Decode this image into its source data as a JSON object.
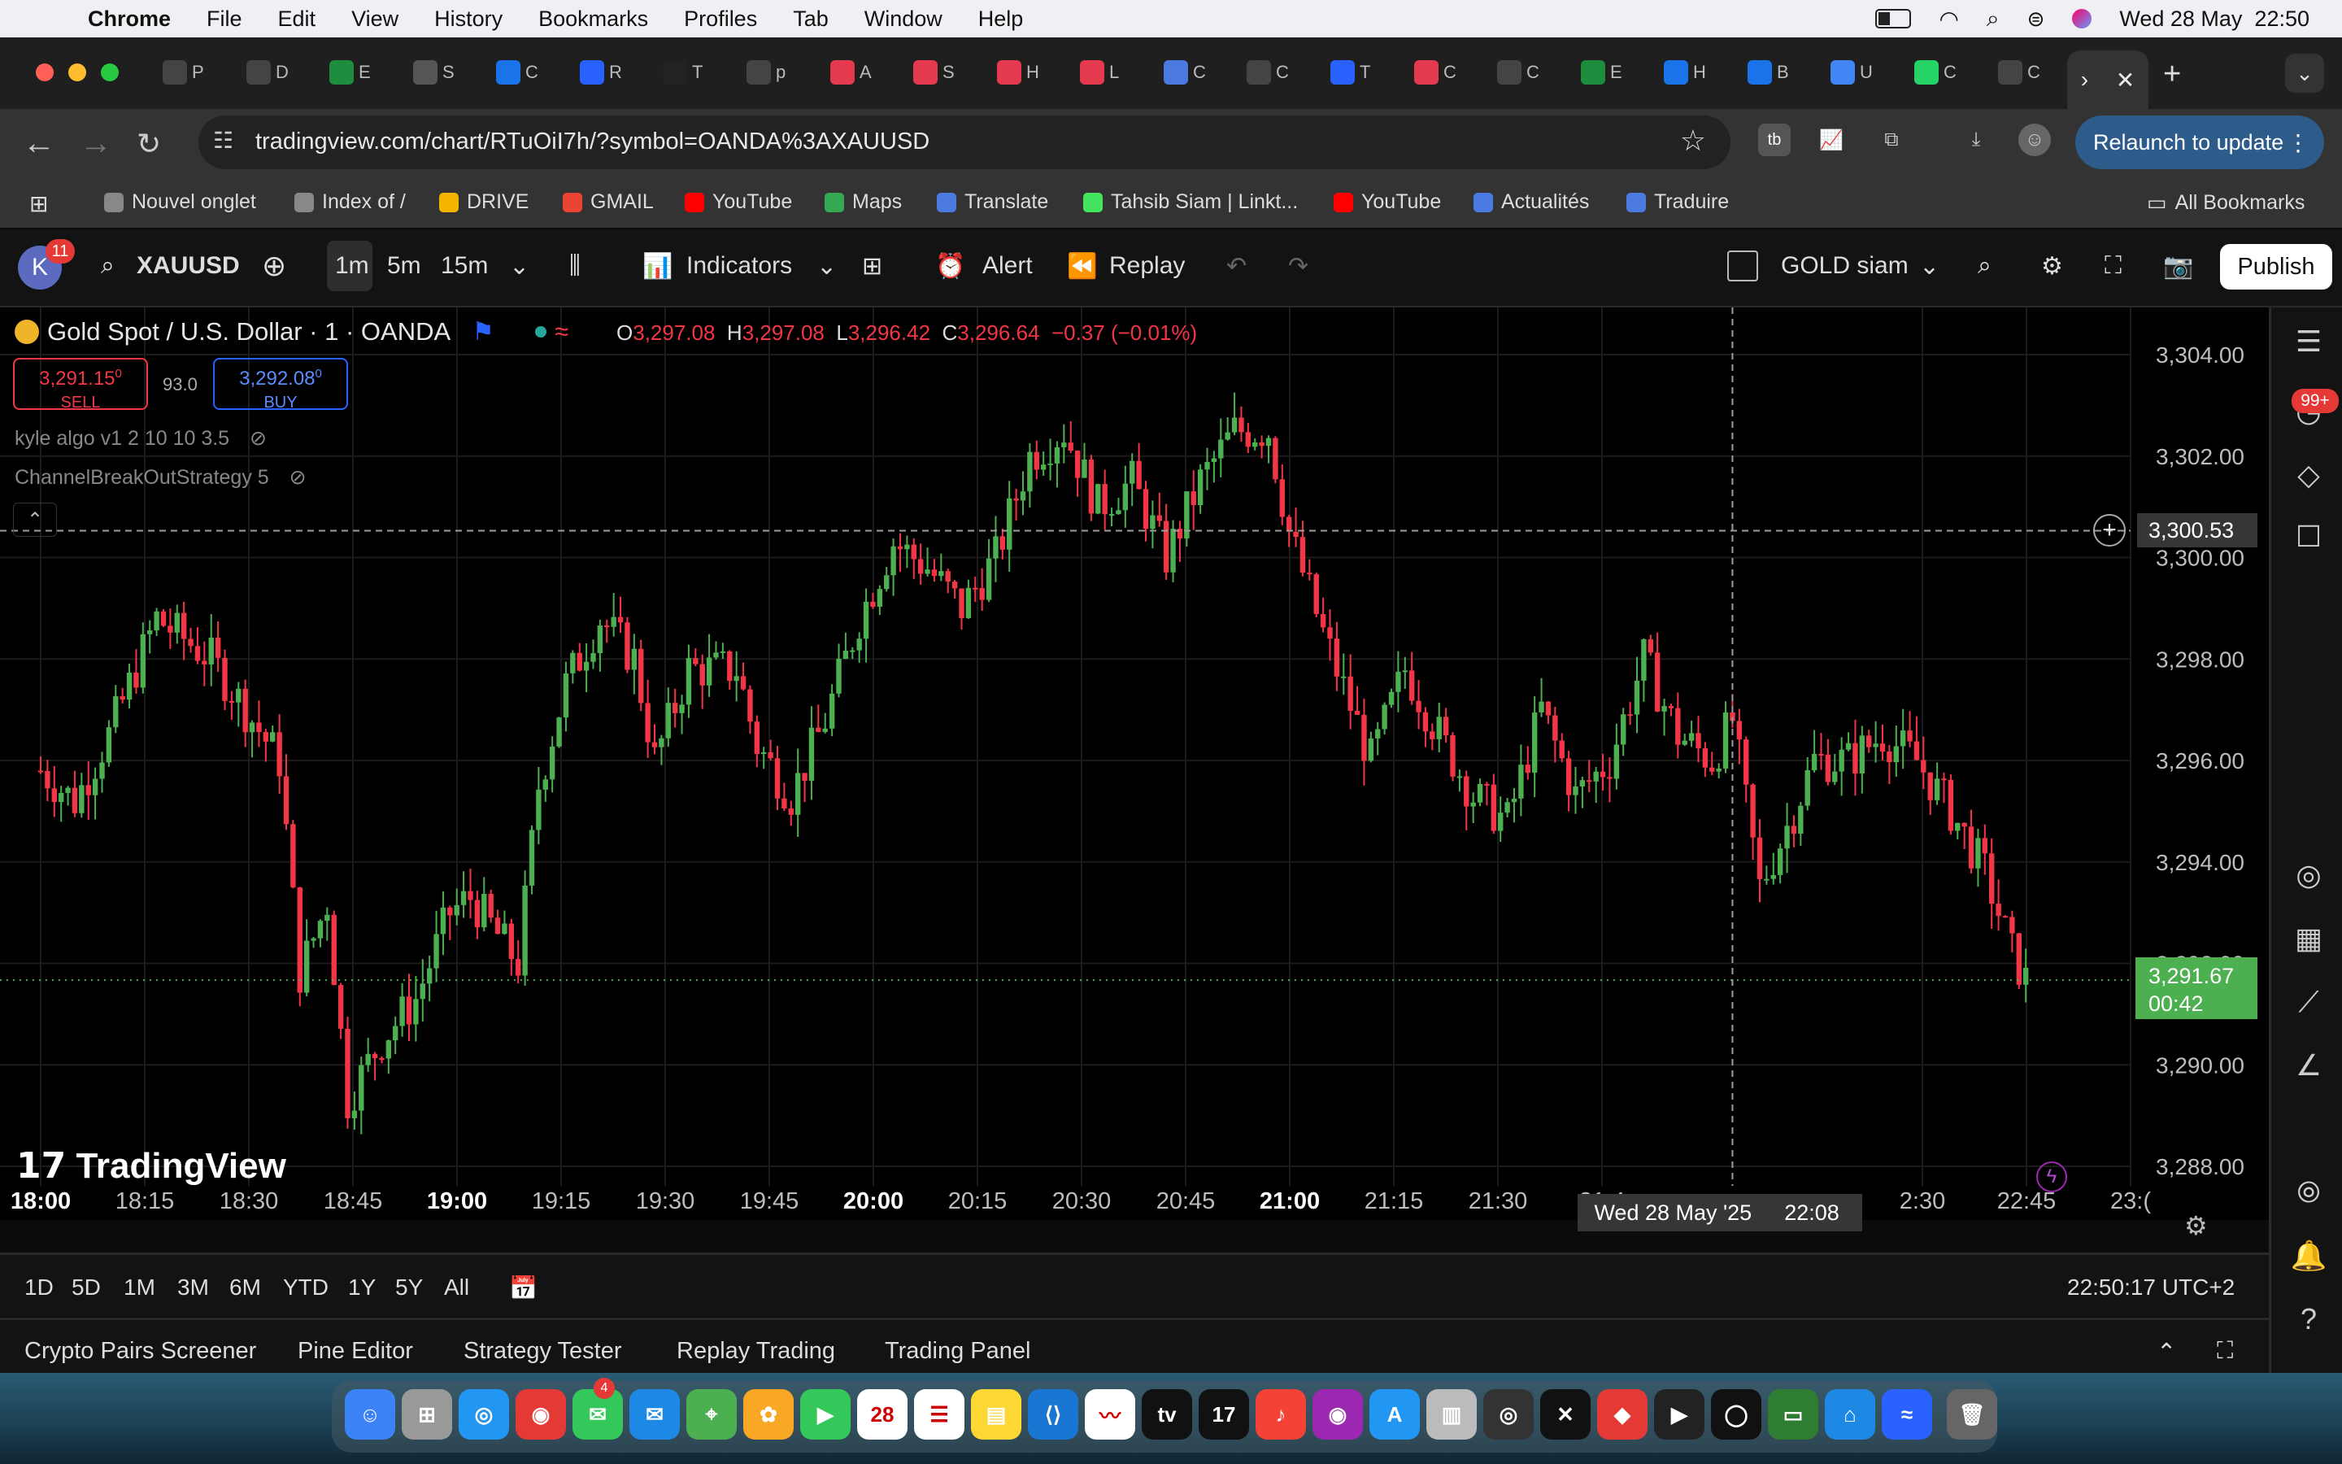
{
  "menubar": {
    "app": "Chrome",
    "items": [
      "File",
      "Edit",
      "View",
      "History",
      "Bookmarks",
      "Profiles",
      "Tab",
      "Window",
      "Help"
    ],
    "datetime": "Wed 28 May  22:50"
  },
  "tabs": [
    {
      "icon": "openai-icon",
      "title": "P",
      "color": "#444"
    },
    {
      "icon": "openai-icon",
      "title": "D",
      "color": "#444"
    },
    {
      "icon": "sheets-icon",
      "title": "E",
      "color": "#1e8e3e"
    },
    {
      "icon": "contact-icon",
      "title": "S",
      "color": "#555"
    },
    {
      "icon": "drive-icon",
      "title": "C",
      "color": "#1a73e8"
    },
    {
      "icon": "messenger-icon",
      "title": "R",
      "color": "#2962ff"
    },
    {
      "icon": "tradingview-icon",
      "title": "T",
      "color": "#222"
    },
    {
      "icon": "openai-icon",
      "title": "p",
      "color": "#444"
    },
    {
      "icon": "airbnb-icon",
      "title": "A",
      "color": "#e53950"
    },
    {
      "icon": "airbnb-icon",
      "title": "S",
      "color": "#e53950"
    },
    {
      "icon": "airbnb-icon",
      "title": "H",
      "color": "#e53950"
    },
    {
      "icon": "airbnb-icon",
      "title": "L",
      "color": "#e53950"
    },
    {
      "icon": "translate-icon",
      "title": "C",
      "color": "#4a7ae0"
    },
    {
      "icon": "openai-icon",
      "title": "C",
      "color": "#444"
    },
    {
      "icon": "messenger-icon",
      "title": "T",
      "color": "#2962ff"
    },
    {
      "icon": "airbnb-icon",
      "title": "C",
      "color": "#e53950"
    },
    {
      "icon": "openai-icon",
      "title": "C",
      "color": "#444"
    },
    {
      "icon": "sheets-icon",
      "title": "E",
      "color": "#1e8e3e"
    },
    {
      "icon": "drive-icon",
      "title": "H",
      "color": "#1a73e8"
    },
    {
      "icon": "drive-icon",
      "title": "B",
      "color": "#1a73e8"
    },
    {
      "icon": "docs-icon",
      "title": "U",
      "color": "#4285f4"
    },
    {
      "icon": "whatsapp-icon",
      "title": "C",
      "color": "#25d366"
    },
    {
      "icon": "openai-icon",
      "title": "C",
      "color": "#444"
    }
  ],
  "address": {
    "url": "tradingview.com/chart/RTuOiI7h/?symbol=OANDA%3AXAUUSD",
    "relaunch": "Relaunch to update"
  },
  "bookmarks": [
    {
      "label": "Nouvel onglet",
      "color": "#888"
    },
    {
      "label": "Index of /",
      "color": "#888"
    },
    {
      "label": "DRIVE",
      "color": "#f4b400"
    },
    {
      "label": "GMAIL",
      "color": "#ea4335"
    },
    {
      "label": "YouTube",
      "color": "#ff0000"
    },
    {
      "label": "Maps",
      "color": "#34a853"
    },
    {
      "label": "Translate",
      "color": "#4a7ae0"
    },
    {
      "label": "Tahsib Siam | Linkt...",
      "color": "#43e55e"
    },
    {
      "label": "YouTube",
      "color": "#ff0000"
    },
    {
      "label": "Actualités",
      "color": "#4a7ae0"
    },
    {
      "label": "Traduire",
      "color": "#4a7ae0"
    }
  ],
  "all_bookmarks": "All Bookmarks",
  "toolbar": {
    "avatar_letter": "K",
    "avatar_badge": "11",
    "symbol": "XAUUSD",
    "tf1": "1m",
    "tf2": "5m",
    "tf3": "15m",
    "indicators": "Indicators",
    "alert": "Alert",
    "replay": "Replay",
    "layout_name": "GOLD siam",
    "publish": "Publish"
  },
  "legend": {
    "title": "Gold Spot / U.S. Dollar · 1 · OANDA",
    "o_label": "O",
    "o": "3,297.08",
    "h_label": "H",
    "h": "3,297.08",
    "l_label": "L",
    "l": "3,296.42",
    "c_label": "C",
    "c": "3,296.64",
    "change": "−0.37 (−0.01%)"
  },
  "trade": {
    "sell_price": "3,291.15",
    "sell_sup": "0",
    "sell_label": "SELL",
    "spread": "93.0",
    "buy_price": "3,292.08",
    "buy_sup": "0",
    "buy_label": "BUY"
  },
  "indicators_list": [
    "kyle algo v1 2 10 10 3.5",
    "ChannelBreakOutStrategy 5"
  ],
  "watermark": "TradingView",
  "price_axis": [
    "3,304.00",
    "3,302.00",
    "3,300.00",
    "3,298.00",
    "3,296.00",
    "3,294.00",
    "3,292.00",
    "3,290.00",
    "3,288.00"
  ],
  "time_axis": [
    {
      "label": "18:00",
      "bold": true
    },
    {
      "label": "18:15"
    },
    {
      "label": "18:30"
    },
    {
      "label": "18:45"
    },
    {
      "label": "19:00",
      "bold": true
    },
    {
      "label": "19:15"
    },
    {
      "label": "19:30"
    },
    {
      "label": "19:45"
    },
    {
      "label": "20:00",
      "bold": true
    },
    {
      "label": "20:15"
    },
    {
      "label": "20:30"
    },
    {
      "label": "20:45"
    },
    {
      "label": "21:00",
      "bold": true
    },
    {
      "label": "21:15"
    },
    {
      "label": "21:30"
    },
    {
      "label": "21:4"
    },
    {
      "label": "2:30"
    },
    {
      "label": "22:45"
    },
    {
      "label": "23:("
    }
  ],
  "crosshair": {
    "price": "3,300.53",
    "date": "Wed 28 May '25",
    "time": "22:08"
  },
  "last_price": {
    "price": "3,291.67",
    "countdown": "00:42"
  },
  "sidebar_badge": "99+",
  "ranges": [
    "1D",
    "5D",
    "1M",
    "3M",
    "6M",
    "YTD",
    "1Y",
    "5Y",
    "All"
  ],
  "clock": "22:50:17 UTC+2",
  "panels": [
    "Crypto Pairs Screener",
    "Pine Editor",
    "Strategy Tester",
    "Replay Trading",
    "Trading Panel"
  ],
  "dock_calendar_day": "28",
  "dock_badge": "4",
  "colors": {
    "up": "#4caf50",
    "down": "#f23645",
    "accent": "#2962ff"
  },
  "chart_data": {
    "type": "candlestick",
    "symbol": "XAUUSD",
    "interval": "1m",
    "ylim": [
      3287.0,
      3305.0
    ],
    "x_range": [
      "18:00",
      "22:51"
    ],
    "grid": true,
    "close_path": [
      {
        "t": "18:00",
        "p": 3295.8
      },
      {
        "t": "18:05",
        "p": 3295.2
      },
      {
        "t": "18:10",
        "p": 3296.5
      },
      {
        "t": "18:17",
        "p": 3298.8
      },
      {
        "t": "18:25",
        "p": 3298.0
      },
      {
        "t": "18:35",
        "p": 3296.0
      },
      {
        "t": "18:38",
        "p": 3291.8
      },
      {
        "t": "18:42",
        "p": 3293.2
      },
      {
        "t": "18:45",
        "p": 3289.3
      },
      {
        "t": "18:50",
        "p": 3290.5
      },
      {
        "t": "18:55",
        "p": 3291.3
      },
      {
        "t": "19:00",
        "p": 3293.0
      },
      {
        "t": "19:03",
        "p": 3293.3
      },
      {
        "t": "19:10",
        "p": 3292.0
      },
      {
        "t": "19:13",
        "p": 3295.5
      },
      {
        "t": "19:17",
        "p": 3297.5
      },
      {
        "t": "19:22",
        "p": 3298.8
      },
      {
        "t": "19:27",
        "p": 3298.0
      },
      {
        "t": "19:30",
        "p": 3296.0
      },
      {
        "t": "19:35",
        "p": 3297.8
      },
      {
        "t": "19:42",
        "p": 3297.8
      },
      {
        "t": "19:45",
        "p": 3296.3
      },
      {
        "t": "19:50",
        "p": 3295.3
      },
      {
        "t": "19:55",
        "p": 3296.8
      },
      {
        "t": "20:00",
        "p": 3298.8
      },
      {
        "t": "20:05",
        "p": 3300.3
      },
      {
        "t": "20:10",
        "p": 3299.8
      },
      {
        "t": "20:15",
        "p": 3299.0
      },
      {
        "t": "20:20",
        "p": 3300.0
      },
      {
        "t": "20:25",
        "p": 3302.0
      },
      {
        "t": "20:30",
        "p": 3302.5
      },
      {
        "t": "20:35",
        "p": 3301.0
      },
      {
        "t": "20:40",
        "p": 3301.5
      },
      {
        "t": "20:45",
        "p": 3300.0
      },
      {
        "t": "20:50",
        "p": 3301.5
      },
      {
        "t": "20:55",
        "p": 3302.5
      },
      {
        "t": "21:00",
        "p": 3302.5
      },
      {
        "t": "21:03",
        "p": 3300.5
      },
      {
        "t": "21:08",
        "p": 3298.5
      },
      {
        "t": "21:15",
        "p": 3296.0
      },
      {
        "t": "21:20",
        "p": 3297.8
      },
      {
        "t": "21:25",
        "p": 3296.5
      },
      {
        "t": "21:30",
        "p": 3295.3
      },
      {
        "t": "21:35",
        "p": 3294.8
      },
      {
        "t": "21:40",
        "p": 3297.0
      },
      {
        "t": "21:45",
        "p": 3295.3
      },
      {
        "t": "21:50",
        "p": 3296.0
      },
      {
        "t": "21:55",
        "p": 3298.0
      },
      {
        "t": "22:00",
        "p": 3296.5
      },
      {
        "t": "22:05",
        "p": 3296.0
      },
      {
        "t": "22:08",
        "p": 3296.8
      },
      {
        "t": "22:12",
        "p": 3293.5
      },
      {
        "t": "22:17",
        "p": 3295.0
      },
      {
        "t": "22:20",
        "p": 3296.0
      },
      {
        "t": "22:25",
        "p": 3296.0
      },
      {
        "t": "22:30",
        "p": 3296.5
      },
      {
        "t": "22:35",
        "p": 3296.0
      },
      {
        "t": "22:40",
        "p": 3295.0
      },
      {
        "t": "22:45",
        "p": 3293.8
      },
      {
        "t": "22:49",
        "p": 3292.2
      },
      {
        "t": "22:51",
        "p": 3291.67
      }
    ]
  }
}
